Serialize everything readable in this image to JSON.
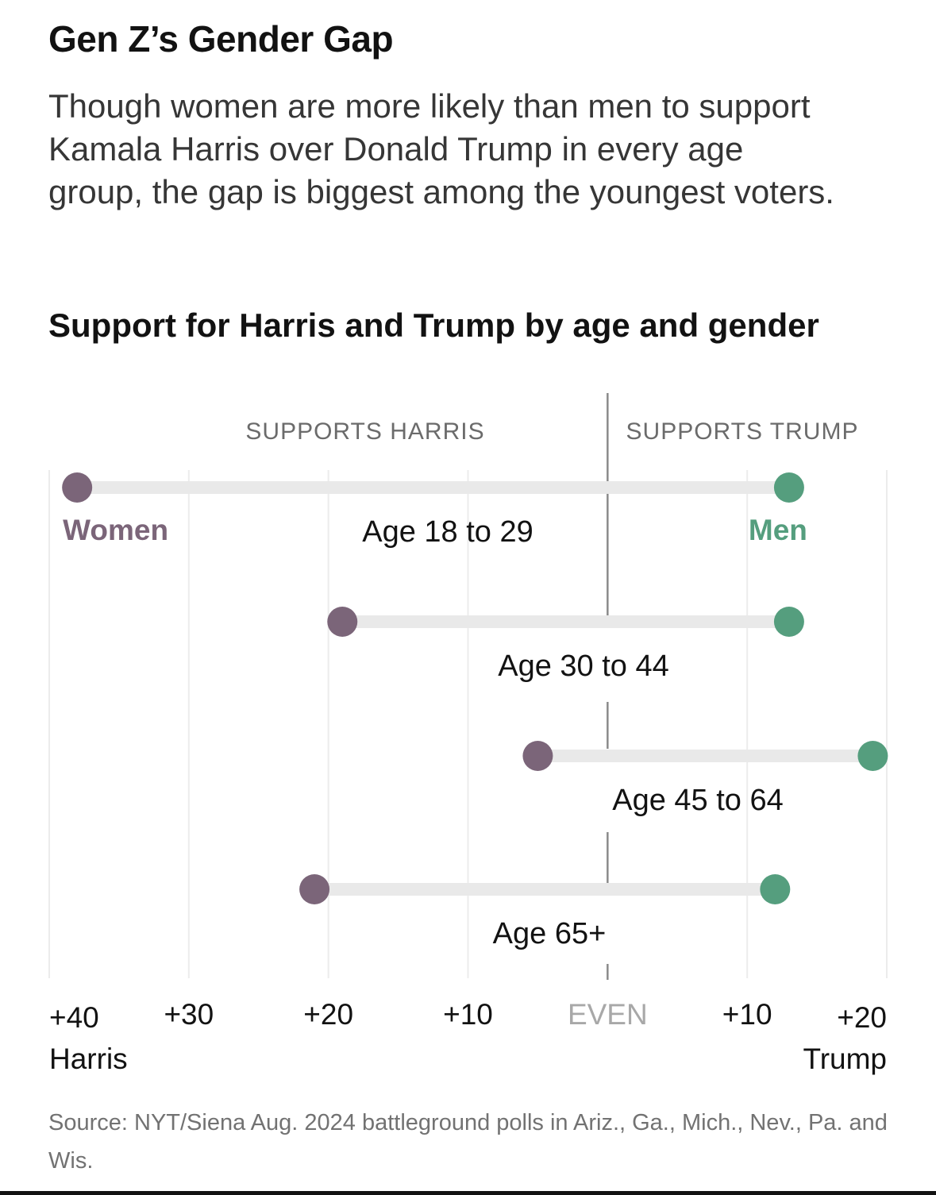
{
  "title": "Gen Z’s Gender Gap",
  "subtitle": "Though women are more likely than men to support Kamala Harris over Donald Trump in every age group, the gap is biggest among the youngest voters.",
  "source": "Source: NYT/Siena Aug. 2024 battleground polls in Ariz., Ga., Mich., Nev., Pa. and Wis.",
  "chart_data": {
    "type": "dumbbell",
    "title": "Support for Harris and Trump by age and gender",
    "side_labels": {
      "left": "SUPPORTS HARRIS",
      "right": "SUPPORTS TRUMP"
    },
    "x_ticks": [
      {
        "label": "+40",
        "sub": "Harris",
        "value": -40
      },
      {
        "label": "+30",
        "sub": "",
        "value": -30
      },
      {
        "label": "+20",
        "sub": "",
        "value": -20
      },
      {
        "label": "+10",
        "sub": "",
        "value": -10
      },
      {
        "label": "EVEN",
        "sub": "",
        "value": 0
      },
      {
        "label": "+10",
        "sub": "",
        "value": 10
      },
      {
        "label": "+20",
        "sub": "Trump",
        "value": 20
      }
    ],
    "x_note": "negative values = Harris lead, positive = Trump lead (margin in points)",
    "xlim": [
      -40,
      20
    ],
    "series_labels": {
      "women": "Women",
      "men": "Men"
    },
    "colors": {
      "women": "#7b6579",
      "men": "#559e7e",
      "bar": "#e9e9e9",
      "grid": "#ececec",
      "even": "#8a8a8a"
    },
    "categories": [
      "Age 18 to 29",
      "Age 30 to 44",
      "Age 45 to 64",
      "Age 65+"
    ],
    "women": [
      -38,
      -19,
      -5,
      -21
    ],
    "men": [
      13,
      13,
      19,
      12
    ]
  }
}
